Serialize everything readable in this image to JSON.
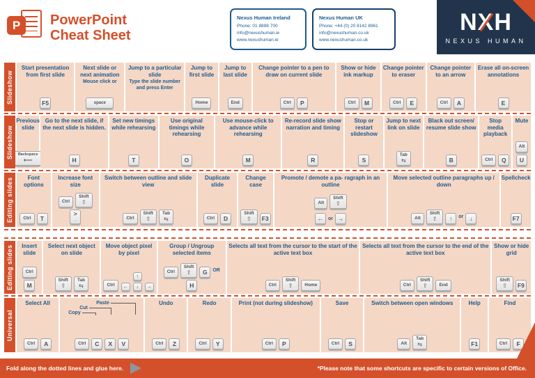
{
  "colors": {
    "accent": "#d4502a",
    "navy": "#22344c",
    "salmon": "#f5d7c6",
    "blue": "#1e5c8d",
    "key_border": "#a5a5a5",
    "gray_arrow": "#8f959e"
  },
  "header": {
    "logo_letter": "P",
    "title": [
      "PowerPoint",
      "Cheat Sheet"
    ],
    "contacts": [
      {
        "name": "Nexus Human Ireland",
        "phone": "Phone: 01 8898 700",
        "email": "info@nexushuman.ie",
        "web": "www.nexushuman.ie"
      },
      {
        "name": "Nexus Human UK",
        "phone": "Phone: +44 (0) 20 8142 8961",
        "email": "info@nexushuman.co.uk",
        "web": "www.nexushuman.co.uk"
      }
    ],
    "brand": {
      "logo_n": "N",
      "logo_x": "X",
      "logo_h": "H",
      "name": "NEXUS HUMAN"
    }
  },
  "rows": [
    {
      "label": "Slideshow",
      "cells": [
        {
          "label": "Start presentation from first slide",
          "keys": [
            {
              "k": "F5"
            }
          ]
        },
        {
          "label": "Next slide or next animation",
          "note": "Mouse click or",
          "keys": [
            {
              "k": "space"
            }
          ]
        },
        {
          "label": "Jump to a particular slide",
          "note2": "Type the slide number and press Enter",
          "keys": []
        },
        {
          "label": "Jump to first slide",
          "keys": [
            {
              "k": "Home"
            }
          ]
        },
        {
          "label": "Jump to last slide",
          "keys": [
            {
              "k": "End"
            }
          ]
        },
        {
          "label": "Change pointer to a pen to draw on current slide",
          "keys": [
            {
              "k": "Ctrl"
            },
            {
              "k": "P"
            }
          ]
        },
        {
          "label": "Show or hide ink markup",
          "keys": [
            {
              "k": "Ctrl"
            },
            {
              "k": "M"
            }
          ]
        },
        {
          "label": "Change pointer to eraser",
          "keys": [
            {
              "k": "Ctrl"
            },
            {
              "k": "E"
            }
          ]
        },
        {
          "label": "Change pointer to an arrow",
          "keys": [
            {
              "k": "Ctrl"
            },
            {
              "k": "A"
            }
          ]
        },
        {
          "label": "Erase all on-screen annotations",
          "keys": [
            {
              "k": "E"
            }
          ]
        }
      ]
    },
    {
      "label": "Slideshow",
      "cells": [
        {
          "label": "Previous slide",
          "keys": [
            {
              "k": "Backspace",
              "sub": "⟵"
            }
          ]
        },
        {
          "label": "Go to the next slide, if the next slide is hidden.",
          "keys": [
            {
              "k": "H"
            }
          ]
        },
        {
          "label": "Set new timings while rehearsing",
          "keys": [
            {
              "k": "T"
            }
          ]
        },
        {
          "label": "Use original timings while rehearsing",
          "keys": [
            {
              "k": "O"
            }
          ]
        },
        {
          "label": "Use mouse-click to advance while rehearsing",
          "keys": [
            {
              "k": "M"
            }
          ]
        },
        {
          "label": "Re-record slide show narration and timing",
          "keys": [
            {
              "k": "R"
            }
          ]
        },
        {
          "label": "Stop or restart slideshow",
          "keys": [
            {
              "k": "S"
            }
          ]
        },
        {
          "label": "Jump to next link on slide",
          "keys": [
            {
              "k": "Tab",
              "sub": "⇆"
            }
          ]
        },
        {
          "label": "Black out screen/ resume slide show",
          "keys": [
            {
              "k": "B"
            }
          ]
        },
        {
          "label": "Stop media playback",
          "keys": [
            {
              "k": "Ctrl"
            },
            {
              "k": "Q"
            }
          ]
        },
        {
          "label": "Mute",
          "keys": [
            {
              "k": "Alt"
            },
            {
              "k": "U"
            }
          ]
        }
      ]
    },
    {
      "label": "Editing slides",
      "cells": [
        {
          "label": "Font options",
          "keys": [
            {
              "k": "Ctrl"
            },
            {
              "k": "T"
            }
          ]
        },
        {
          "label": "Increase font size",
          "keys": [
            {
              "k": "Ctrl"
            },
            {
              "k": "Shift",
              "sub": "⇧"
            },
            {
              "k": ">",
              "sub": "."
            }
          ]
        },
        {
          "label": "Switch between outline and slide view",
          "keys": [
            {
              "k": "Ctrl"
            },
            {
              "k": "Shift",
              "sub": "⇧"
            },
            {
              "k": "Tab",
              "sub": "⇆"
            }
          ]
        },
        {
          "label": "Duplicate slide",
          "keys": [
            {
              "k": "Ctrl"
            },
            {
              "k": "D"
            }
          ]
        },
        {
          "label": "Change case",
          "keys": [
            {
              "k": "Shift",
              "sub": "⇧"
            },
            {
              "k": "F3"
            }
          ]
        },
        {
          "label": "Promote / demote a pa- ragraph in an outline",
          "keys": [
            {
              "k": "Alt"
            },
            {
              "k": "Shift",
              "sub": "⇧"
            },
            {
              "br": true
            },
            {
              "k": "←"
            },
            {
              "t": "or"
            },
            {
              "k": "→"
            }
          ]
        },
        {
          "label": "Move selected outline paragraphs up / down",
          "keys": [
            {
              "k": "Alt"
            },
            {
              "k": "Shift",
              "sub": "⇧"
            },
            {
              "k": "↑"
            },
            {
              "t": "or"
            },
            {
              "k": "↓"
            }
          ]
        },
        {
          "label": "Spellcheck",
          "keys": [
            {
              "k": "F7"
            }
          ]
        }
      ]
    },
    {
      "label": "Editing slides",
      "cells": [
        {
          "label": "Insert slide",
          "keys": [
            {
              "k": "Ctrl"
            },
            {
              "k": "M"
            }
          ]
        },
        {
          "label": "Select next object on slide",
          "keys": [
            {
              "k": "Shift",
              "sub": "⇧"
            },
            {
              "k": "Tab",
              "sub": "⇆"
            }
          ]
        },
        {
          "label": "Move object pixel by pixel",
          "keys": [
            {
              "k": "Ctrl"
            },
            {
              "cluster": true
            }
          ]
        },
        {
          "label": "Group / Ungroup selected items",
          "keys": [
            {
              "k": "Ctrl"
            },
            {
              "k": "Shift",
              "sub": "⇧"
            },
            {
              "k": "G"
            },
            {
              "t": "OR"
            },
            {
              "k": "H"
            }
          ]
        },
        {
          "label": "Selects all text from the cursor to the start of the active text box",
          "keys": [
            {
              "k": "Ctrl"
            },
            {
              "k": "Shift",
              "sub": "⇧"
            },
            {
              "k": "Home"
            }
          ]
        },
        {
          "label": "Selects all text from the cursor to the end of the active text box",
          "keys": [
            {
              "k": "Ctrl"
            },
            {
              "k": "Shift",
              "sub": "⇧"
            },
            {
              "k": "End"
            }
          ]
        },
        {
          "label": "Show or hide grid",
          "keys": [
            {
              "k": "Shift",
              "sub": "⇧"
            },
            {
              "k": "F9"
            }
          ]
        }
      ]
    },
    {
      "label": "Universal",
      "cells": [
        {
          "label": "Select All",
          "keys": [
            {
              "k": "Ctrl"
            },
            {
              "k": "A"
            }
          ]
        },
        {
          "label": "",
          "ccp": {
            "cut": "Cut",
            "copy": "Copy",
            "paste": "Paste"
          },
          "keys": [
            {
              "k": "Ctrl"
            },
            {
              "k": "C"
            },
            {
              "k": "X"
            },
            {
              "k": "V"
            }
          ]
        },
        {
          "label": "Undo",
          "keys": [
            {
              "k": "Ctrl"
            },
            {
              "k": "Z"
            }
          ]
        },
        {
          "label": "Redo",
          "keys": [
            {
              "k": "Ctrl"
            },
            {
              "k": "Y"
            }
          ]
        },
        {
          "label": "Print (not during slideshow)",
          "keys": [
            {
              "k": "Ctrl"
            },
            {
              "k": "P"
            }
          ]
        },
        {
          "label": "Save",
          "keys": [
            {
              "k": "Ctrl"
            },
            {
              "k": "S"
            }
          ]
        },
        {
          "label": "Switch between open windows",
          "keys": [
            {
              "k": "Alt"
            },
            {
              "k": "Tab",
              "sub": "⇆"
            }
          ]
        },
        {
          "label": "Help",
          "keys": [
            {
              "k": "F1"
            }
          ]
        },
        {
          "label": "Find",
          "keys": [
            {
              "k": "Ctrl"
            },
            {
              "k": "F"
            }
          ]
        }
      ]
    }
  ],
  "footer": {
    "left": "Fold along the dotted lines and glue here.",
    "right": "*Please note that some shortcuts are specific to certain versions of Office."
  }
}
